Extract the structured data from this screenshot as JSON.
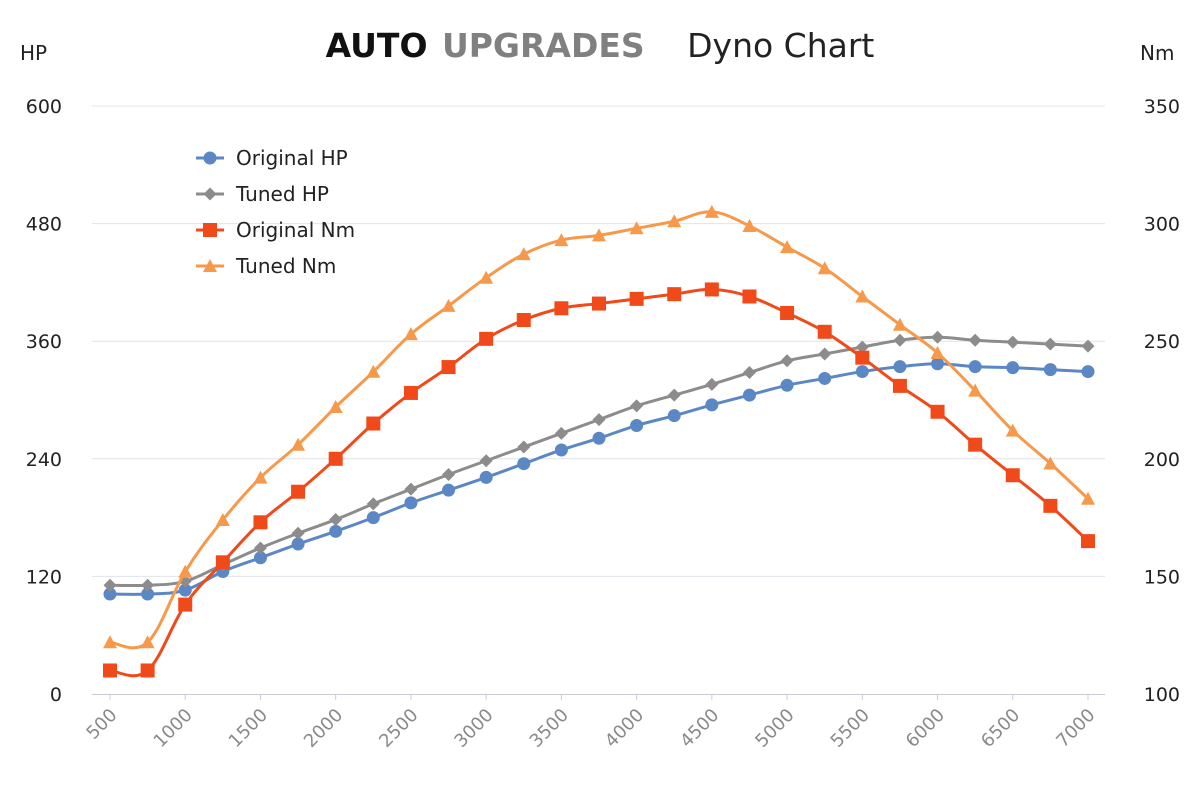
{
  "title": {
    "brand_part1": "AUTO",
    "brand_part2": "UPGRADES",
    "subtitle": "Dyno Chart",
    "brand_color1": "#111111",
    "brand_color2": "#808080"
  },
  "chart_data": {
    "type": "line",
    "title": "AUTO UPGRADES Dyno Chart",
    "x_categories": [
      "500",
      "750",
      "1000",
      "1250",
      "1500",
      "1750",
      "2000",
      "2250",
      "2500",
      "2750",
      "3000",
      "3250",
      "3500",
      "3750",
      "4000",
      "4250",
      "4500",
      "4750",
      "5000",
      "5250",
      "5500",
      "5750",
      "6000",
      "6250",
      "6500",
      "6750",
      "7000"
    ],
    "x_tick_labels": [
      "500",
      "1000",
      "1500",
      "2000",
      "2500",
      "3000",
      "3500",
      "4000",
      "4500",
      "5000",
      "5500",
      "6000",
      "6500",
      "7000"
    ],
    "left_axis": {
      "label": "HP",
      "range": [
        0,
        600
      ],
      "ticks": [
        "0",
        "120",
        "240",
        "360",
        "480",
        "600"
      ]
    },
    "right_axis": {
      "label": "Nm",
      "range": [
        100,
        350
      ],
      "ticks": [
        "100",
        "150",
        "200",
        "250",
        "300",
        "350"
      ]
    },
    "grid": true,
    "legend_position": "top-left",
    "series": [
      {
        "name": "Original HP",
        "axis": "left",
        "color": "#5b87c4",
        "marker": "circle",
        "values": [
          102,
          102,
          106,
          125,
          139,
          153,
          166,
          180,
          195,
          208,
          221,
          235,
          249,
          261,
          274,
          284,
          295,
          305,
          315,
          322,
          329,
          334,
          337,
          334,
          333,
          331,
          329
        ]
      },
      {
        "name": "Tuned HP",
        "axis": "left",
        "color": "#8c8c8c",
        "marker": "diamond",
        "values": [
          111,
          111,
          115,
          132,
          149,
          164,
          178,
          194,
          209,
          224,
          238,
          252,
          266,
          280,
          294,
          305,
          316,
          328,
          340,
          347,
          354,
          361,
          364,
          361,
          359,
          357,
          355
        ]
      },
      {
        "name": "Original Nm",
        "axis": "right",
        "color": "#f04a1a",
        "marker": "square",
        "values": [
          110,
          110,
          138,
          156,
          173,
          186,
          200,
          215,
          228,
          239,
          251,
          259,
          264,
          266,
          268,
          270,
          272,
          269,
          262,
          254,
          243,
          231,
          220,
          206,
          193,
          180,
          165
        ]
      },
      {
        "name": "Tuned Nm",
        "axis": "right",
        "color": "#f7994a",
        "marker": "triangle",
        "values": [
          122,
          122,
          152,
          174,
          192,
          206,
          222,
          237,
          253,
          265,
          277,
          287,
          293,
          295,
          298,
          301,
          305,
          299,
          290,
          281,
          269,
          257,
          245,
          229,
          212,
          198,
          183
        ]
      }
    ]
  }
}
